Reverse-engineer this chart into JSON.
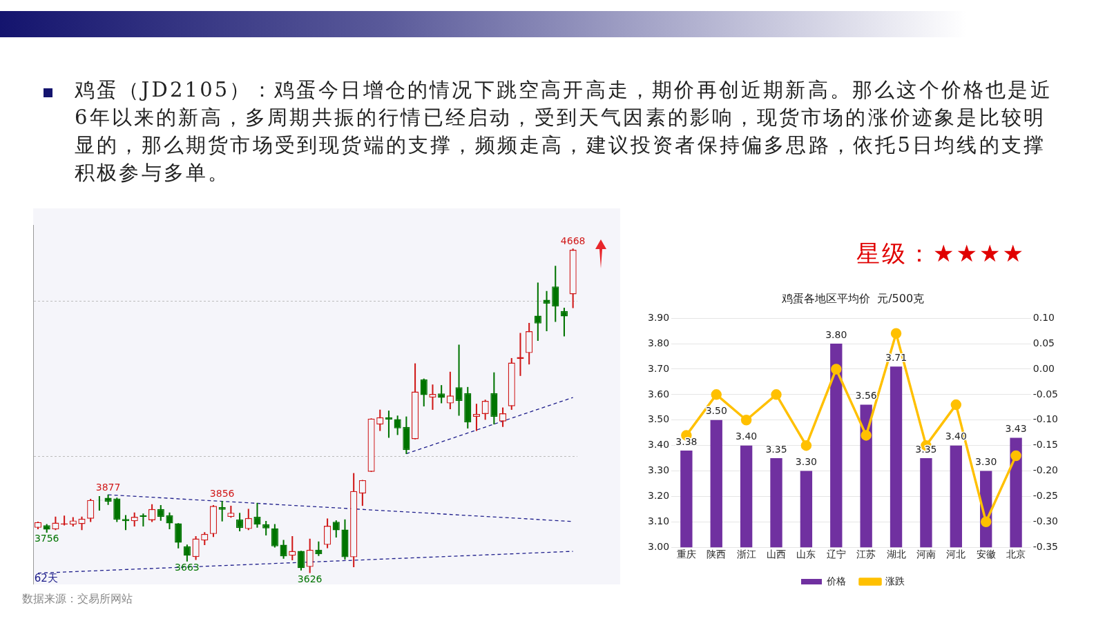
{
  "chart_data": [
    {
      "type": "candlestick",
      "title": "鸡蛋（JD2105）：鸡蛋今日增仓的情况下跳空高开高走，期价再创近期新高。那么这个价格也是近6年以来的新高，多周期共振的行情已经启动，受到天气因素的影响，现货市场的涨价迹象是比较明显的，那么期货市场受到现货端的支撑，频频走高，建议投资者保持偏多思路，依托5日均线的支撑积极参与多单。",
      "categories": [
        null,
        null,
        null,
        null,
        null,
        null,
        null,
        null,
        null,
        null,
        null,
        null,
        null,
        null,
        null,
        null,
        null,
        null,
        null,
        null,
        null,
        null,
        null,
        null,
        null,
        null,
        null,
        null,
        null,
        null,
        null,
        null,
        null,
        null,
        null,
        null,
        null,
        null,
        null,
        null,
        null,
        null,
        null,
        null,
        null,
        null,
        null,
        null,
        null,
        null,
        null,
        null,
        null,
        null,
        null,
        null,
        null,
        null,
        null,
        null,
        null,
        null
      ],
      "ohlc": [
        [
          3771,
          3790,
          3767,
          3789
        ],
        [
          3779,
          3782,
          3756,
          3765
        ],
        [
          3766,
          3806,
          3764,
          3787
        ],
        [
          3781,
          3809,
          3779,
          3785
        ],
        [
          3781,
          3804,
          3776,
          3794
        ],
        [
          3783,
          3806,
          3764,
          3800
        ],
        [
          3800,
          3863,
          3790,
          3860
        ],
        [
          3860,
          3872,
          3827,
          3859
        ],
        [
          3867,
          3877,
          3845,
          3855
        ],
        [
          3865,
          3867,
          3790,
          3797
        ],
        [
          3799,
          3811,
          3764,
          3792
        ],
        [
          3792,
          3819,
          3776,
          3806
        ],
        [
          3811,
          3816,
          3776,
          3806
        ],
        [
          3795,
          3846,
          3790,
          3831
        ],
        [
          3831,
          3843,
          3794,
          3806
        ],
        [
          3811,
          3819,
          3767,
          3785
        ],
        [
          3785,
          3785,
          3705,
          3723
        ],
        [
          3711,
          3716,
          3663,
          3681
        ],
        [
          3677,
          3743,
          3668,
          3736
        ],
        [
          3730,
          3756,
          3716,
          3751
        ],
        [
          3751,
          3843,
          3742,
          3841
        ],
        [
          3837,
          3856,
          3792,
          3829
        ],
        [
          3806,
          3841,
          3804,
          3819
        ],
        [
          3797,
          3818,
          3760,
          3770
        ],
        [
          3767,
          3831,
          3764,
          3802
        ],
        [
          3806,
          3850,
          3772,
          3781
        ],
        [
          3782,
          3792,
          3747,
          3769
        ],
        [
          3769,
          3782,
          3708,
          3711
        ],
        [
          3716,
          3731,
          3672,
          3679
        ],
        [
          3681,
          3743,
          3667,
          3696
        ],
        [
          3696,
          3696,
          3634,
          3641
        ],
        [
          3645,
          3735,
          3626,
          3700
        ],
        [
          3700,
          3726,
          3681,
          3686
        ],
        [
          3716,
          3800,
          3706,
          3777
        ],
        [
          3790,
          3794,
          3740,
          3763
        ],
        [
          3765,
          3797,
          3669,
          3676
        ],
        [
          3676,
          3946,
          3645,
          3889
        ],
        [
          3881,
          3924,
          3842,
          3924
        ],
        [
          3951,
          4122,
          3951,
          4122
        ],
        [
          4103,
          4150,
          4083,
          4126
        ],
        [
          4126,
          4147,
          4061,
          4119
        ],
        [
          4120,
          4131,
          4070,
          4091
        ],
        [
          4095,
          4128,
          4009,
          4021
        ],
        [
          4056,
          4299,
          4056,
          4209
        ],
        [
          4248,
          4250,
          4162,
          4198
        ],
        [
          4190,
          4231,
          4151,
          4201
        ],
        [
          4203,
          4229,
          4172,
          4189
        ],
        [
          4171,
          4272,
          4153,
          4196
        ],
        [
          4223,
          4359,
          4132,
          4179
        ],
        [
          4204,
          4223,
          4091,
          4110
        ],
        [
          4128,
          4169,
          4083,
          4137
        ],
        [
          4137,
          4182,
          4119,
          4179
        ],
        [
          4204,
          4270,
          4104,
          4128
        ],
        [
          4113,
          4157,
          4096,
          4139
        ],
        [
          4162,
          4316,
          4151,
          4302
        ],
        [
          4314,
          4397,
          4260,
          4320
        ],
        [
          4333,
          4429,
          4297,
          4403
        ],
        [
          4453,
          4559,
          4373,
          4428
        ],
        [
          4504,
          4532,
          4404,
          4492
        ],
        [
          4547,
          4613,
          4434,
          4483
        ],
        [
          4468,
          4478,
          4387,
          4451
        ],
        [
          4522,
          4668,
          4478,
          4665
        ]
      ],
      "value_labels": [
        null,
        "3756",
        null,
        null,
        null,
        null,
        null,
        null,
        "3877",
        null,
        null,
        null,
        null,
        null,
        null,
        null,
        null,
        "3663",
        null,
        null,
        null,
        "3856",
        null,
        null,
        null,
        null,
        null,
        null,
        null,
        null,
        null,
        "3626",
        null,
        null,
        null,
        null,
        null,
        null,
        null,
        null,
        null,
        null,
        null,
        null,
        null,
        null,
        null,
        null,
        null,
        null,
        null,
        null,
        null,
        null,
        null,
        null,
        null,
        null,
        null,
        null,
        null,
        "4668"
      ],
      "series": [
        {
          "type": "line",
          "color": "#1c1c8a",
          "line_style": "dashed",
          "values": [
            null,
            null,
            null,
            null,
            null,
            null,
            null,
            null,
            3877,
            null,
            null,
            null,
            null,
            null,
            null,
            null,
            null,
            null,
            null,
            null,
            null,
            null,
            null,
            null,
            null,
            null,
            null,
            null,
            null,
            null,
            null,
            null,
            null,
            null,
            null,
            null,
            null,
            null,
            null,
            null,
            null,
            null,
            null,
            null,
            null,
            null,
            null,
            null,
            null,
            null,
            null,
            null,
            null,
            null,
            null,
            null,
            null,
            null,
            null,
            null,
            null,
            3791
          ]
        },
        {
          "type": "line",
          "color": "#1c1c8a",
          "line_style": "dashed",
          "values": [
            3625,
            null,
            null,
            null,
            null,
            null,
            null,
            null,
            null,
            null,
            null,
            null,
            null,
            null,
            null,
            null,
            null,
            null,
            null,
            null,
            null,
            null,
            null,
            null,
            null,
            null,
            null,
            null,
            null,
            null,
            null,
            null,
            null,
            null,
            null,
            null,
            null,
            null,
            null,
            null,
            null,
            null,
            null,
            null,
            null,
            null,
            null,
            null,
            null,
            null,
            null,
            null,
            null,
            null,
            null,
            null,
            null,
            null,
            null,
            null,
            null,
            3695
          ]
        },
        {
          "type": "line",
          "color": "#1c1c8a",
          "line_style": "dashed",
          "values": [
            null,
            null,
            null,
            null,
            null,
            null,
            null,
            null,
            null,
            null,
            null,
            null,
            null,
            null,
            null,
            null,
            null,
            null,
            null,
            null,
            null,
            null,
            null,
            null,
            null,
            null,
            null,
            null,
            null,
            null,
            null,
            null,
            null,
            null,
            null,
            null,
            null,
            null,
            null,
            null,
            null,
            null,
            4009,
            null,
            null,
            null,
            null,
            null,
            null,
            null,
            null,
            null,
            null,
            null,
            null,
            null,
            null,
            null,
            null,
            null,
            null,
            4190
          ]
        }
      ],
      "ylim": [
        3590,
        4745
      ],
      "yticks": [
        {
          "value": 4000,
          "label": null
        },
        {
          "value": 4500,
          "label": null
        }
      ],
      "grid": "y",
      "tick_labels": false,
      "annotations": [
        "62天",
        "数据来源：交易所网站"
      ]
    },
    {
      "type": "bar",
      "title": "鸡蛋各地区平均价  元/500克",
      "categories": [
        "重庆",
        "陕西",
        "浙江",
        "山西",
        "山东",
        "辽宁",
        "江苏",
        "湖北",
        "河南",
        "河北",
        "安徽",
        "北京"
      ],
      "series": [
        {
          "name": "价格",
          "color": "#7030a0",
          "values": [
            3.38,
            3.5,
            3.4,
            3.35,
            3.3,
            3.8,
            3.56,
            3.71,
            3.35,
            3.4,
            3.3,
            3.43
          ],
          "value_labels": [
            "3.38",
            "3.50",
            "3.40",
            "3.35",
            "3.30",
            "3.80",
            "3.56",
            "3.71",
            "3.35",
            "3.40",
            "3.30",
            "3.43"
          ]
        },
        {
          "name": "涨跌",
          "type": "line",
          "axis": "y2",
          "color": "#ffc000",
          "values": [
            -0.13,
            -0.05,
            -0.1,
            -0.05,
            -0.15,
            0.0,
            -0.13,
            0.07,
            -0.15,
            -0.07,
            -0.3,
            -0.17
          ]
        }
      ],
      "ylim": [
        3.0,
        3.9
      ],
      "yticks": [
        {
          "value": 3.0,
          "label": "3.00"
        },
        {
          "value": 3.1,
          "label": "3.10"
        },
        {
          "value": 3.2,
          "label": "3.20"
        },
        {
          "value": 3.3,
          "label": "3.30"
        },
        {
          "value": 3.4,
          "label": "3.40"
        },
        {
          "value": 3.5,
          "label": "3.50"
        },
        {
          "value": 3.6,
          "label": "3.60"
        },
        {
          "value": 3.7,
          "label": "3.70"
        },
        {
          "value": 3.8,
          "label": "3.80"
        },
        {
          "value": 3.9,
          "label": "3.90"
        }
      ],
      "y2lim": [
        -0.35,
        0.1
      ],
      "y2ticks": [
        {
          "value": -0.35,
          "label": "-0.35"
        },
        {
          "value": -0.3,
          "label": "-0.30"
        },
        {
          "value": -0.25,
          "label": "-0.25"
        },
        {
          "value": -0.2,
          "label": "-0.20"
        },
        {
          "value": -0.15,
          "label": "-0.15"
        },
        {
          "value": -0.1,
          "label": "-0.10"
        },
        {
          "value": -0.05,
          "label": "-0.05"
        },
        {
          "value": 0,
          "label": "0.00"
        },
        {
          "value": 0.05,
          "label": "0.05"
        },
        {
          "value": 0.1,
          "label": "0.10"
        }
      ],
      "grid": "y",
      "legend": "bottom",
      "marker": "circle",
      "annotations": [
        "星级：★★★★"
      ]
    }
  ]
}
